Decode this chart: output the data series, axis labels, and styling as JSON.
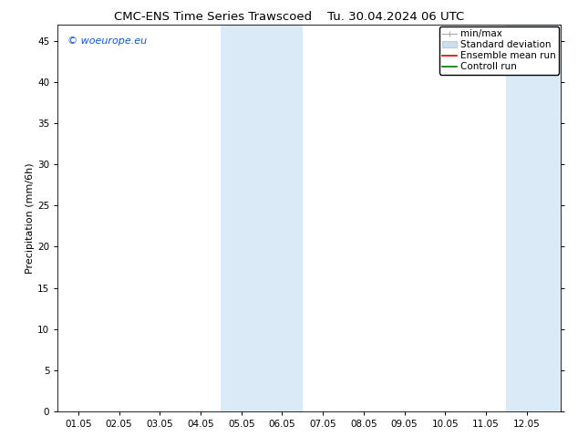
{
  "title_left": "CMC-ENS Time Series Trawscoed",
  "title_right": "Tu. 30.04.2024 06 UTC",
  "ylabel": "Precipitation (mm/6h)",
  "background_color": "#ffffff",
  "ylim": [
    0,
    47
  ],
  "yticks": [
    0,
    5,
    10,
    15,
    20,
    25,
    30,
    35,
    40,
    45
  ],
  "xtick_labels": [
    "01.05",
    "02.05",
    "03.05",
    "04.05",
    "05.05",
    "06.05",
    "07.05",
    "08.05",
    "09.05",
    "10.05",
    "11.05",
    "12.05"
  ],
  "xtick_positions": [
    0,
    1,
    2,
    3,
    4,
    5,
    6,
    7,
    8,
    9,
    10,
    11
  ],
  "xlim": [
    -0.5,
    11.83
  ],
  "shaded_regions": [
    {
      "xmin": 3.5,
      "xmax": 4.5,
      "color": "#daeaf7"
    },
    {
      "xmin": 4.5,
      "xmax": 5.5,
      "color": "#daeaf7"
    },
    {
      "xmin": 10.5,
      "xmax": 11.5,
      "color": "#daeaf7"
    },
    {
      "xmin": 11.5,
      "xmax": 11.83,
      "color": "#daeaf7"
    }
  ],
  "watermark": "© woeurope.eu",
  "watermark_color": "#1155cc",
  "title_fontsize": 9.5,
  "ylabel_fontsize": 8,
  "tick_fontsize": 7.5,
  "legend_fontsize": 7.5,
  "minmax_color": "#aaaaaa",
  "sd_facecolor": "#ccddee",
  "sd_edgecolor": "#aabbcc",
  "ens_color": "#dd0000",
  "ctrl_color": "#007700"
}
